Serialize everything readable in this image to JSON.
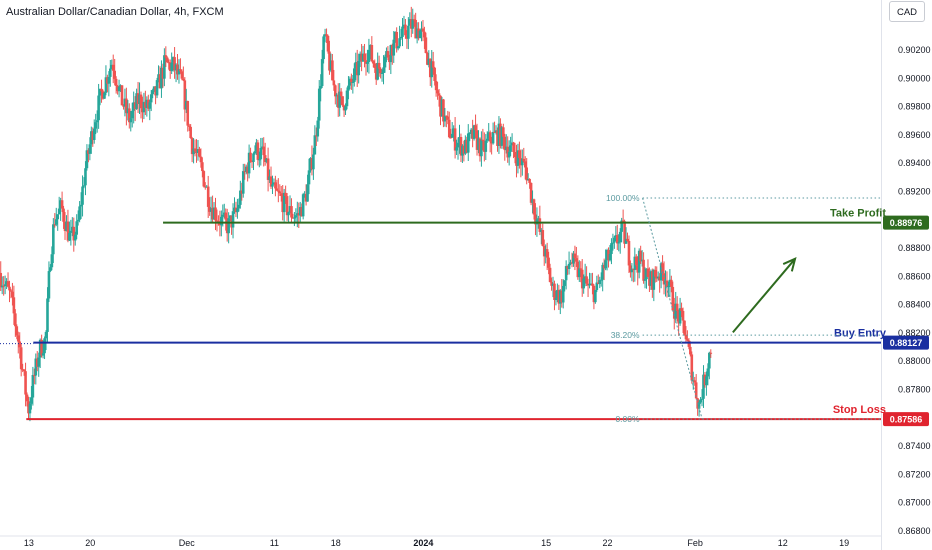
{
  "header": {
    "symbol_title": "Australian Dollar/Canadian Dollar, 4h, FXCM",
    "currency_button": "CAD"
  },
  "colors": {
    "bull": "#26a69a",
    "bear": "#ef5350",
    "take_profit": "#2e6b1f",
    "entry": "#1a2fa0",
    "stop_loss": "#e0242f",
    "fib": "#5b9aa0",
    "arrow": "#2e6b1f",
    "axis_text": "#131722"
  },
  "chart_data": {
    "type": "candlestick",
    "title": "Australian Dollar/Canadian Dollar, 4h, FXCM",
    "y_axis": {
      "ticks": [
        "0.90200",
        "0.90000",
        "0.89800",
        "0.89600",
        "0.89400",
        "0.89200",
        "0.88800",
        "0.88600",
        "0.88400",
        "0.88200",
        "0.88000",
        "0.87800",
        "0.87400",
        "0.87200",
        "0.87000",
        "0.86800"
      ],
      "ylim": [
        0.8676,
        0.9055
      ]
    },
    "x_axis": {
      "ticks": [
        {
          "label": "13",
          "pos": 0.0
        },
        {
          "label": "20",
          "pos": 7.0
        },
        {
          "label": "Dec",
          "pos": 18.0
        },
        {
          "label": "11",
          "pos": 28.0
        },
        {
          "label": "18",
          "pos": 35.0
        },
        {
          "label": "2024",
          "pos": 45.0
        },
        {
          "label": "15",
          "pos": 59.0
        },
        {
          "label": "22",
          "pos": 66.0
        },
        {
          "label": "Feb",
          "pos": 76.0
        },
        {
          "label": "12",
          "pos": 86.0
        },
        {
          "label": "19",
          "pos": 93.0
        }
      ],
      "xlim": [
        -3.3,
        97.2
      ]
    },
    "price_path": [
      [
        -3.3,
        0.8862
      ],
      [
        -2.0,
        0.8845
      ],
      [
        -1.0,
        0.881
      ],
      [
        0.0,
        0.8765
      ],
      [
        0.5,
        0.8783
      ],
      [
        1.3,
        0.8808
      ],
      [
        2.0,
        0.8815
      ],
      [
        2.5,
        0.8872
      ],
      [
        3.0,
        0.89
      ],
      [
        3.8,
        0.8908
      ],
      [
        4.8,
        0.8885
      ],
      [
        5.6,
        0.8893
      ],
      [
        6.5,
        0.8935
      ],
      [
        7.5,
        0.8968
      ],
      [
        8.5,
        0.8992
      ],
      [
        9.6,
        0.9012
      ],
      [
        10.6,
        0.8985
      ],
      [
        11.6,
        0.897
      ],
      [
        12.6,
        0.8985
      ],
      [
        13.6,
        0.8978
      ],
      [
        14.6,
        0.899
      ],
      [
        15.6,
        0.901
      ],
      [
        16.6,
        0.9008
      ],
      [
        17.6,
        0.8995
      ],
      [
        18.6,
        0.8955
      ],
      [
        19.8,
        0.8935
      ],
      [
        20.8,
        0.891
      ],
      [
        21.8,
        0.89
      ],
      [
        22.8,
        0.8895
      ],
      [
        23.8,
        0.8905
      ],
      [
        24.8,
        0.8935
      ],
      [
        25.8,
        0.895
      ],
      [
        26.8,
        0.8945
      ],
      [
        27.8,
        0.892
      ],
      [
        28.8,
        0.8915
      ],
      [
        29.8,
        0.8905
      ],
      [
        30.8,
        0.8902
      ],
      [
        31.8,
        0.892
      ],
      [
        32.8,
        0.896
      ],
      [
        33.8,
        0.903
      ],
      [
        34.8,
        0.8995
      ],
      [
        35.8,
        0.898
      ],
      [
        36.8,
        0.8995
      ],
      [
        37.8,
        0.901
      ],
      [
        38.8,
        0.902
      ],
      [
        39.8,
        0.9005
      ],
      [
        40.8,
        0.9015
      ],
      [
        41.8,
        0.9025
      ],
      [
        42.8,
        0.903
      ],
      [
        43.8,
        0.9038
      ],
      [
        44.8,
        0.9032
      ],
      [
        45.8,
        0.901
      ],
      [
        46.8,
        0.8985
      ],
      [
        47.8,
        0.8965
      ],
      [
        48.8,
        0.8955
      ],
      [
        49.8,
        0.895
      ],
      [
        50.8,
        0.896
      ],
      [
        51.8,
        0.8948
      ],
      [
        52.8,
        0.8958
      ],
      [
        53.8,
        0.896
      ],
      [
        54.8,
        0.895
      ],
      [
        55.8,
        0.8945
      ],
      [
        56.8,
        0.8935
      ],
      [
        57.8,
        0.8905
      ],
      [
        58.8,
        0.888
      ],
      [
        59.8,
        0.885
      ],
      [
        60.8,
        0.8845
      ],
      [
        61.8,
        0.8872
      ],
      [
        62.8,
        0.8862
      ],
      [
        63.8,
        0.8852
      ],
      [
        64.8,
        0.8848
      ],
      [
        65.8,
        0.8868
      ],
      [
        66.8,
        0.888
      ],
      [
        67.8,
        0.8893
      ],
      [
        68.8,
        0.8868
      ],
      [
        69.8,
        0.887
      ],
      [
        70.8,
        0.8855
      ],
      [
        71.8,
        0.8862
      ],
      [
        72.8,
        0.886
      ],
      [
        73.8,
        0.8835
      ],
      [
        74.8,
        0.8825
      ],
      [
        75.8,
        0.879
      ],
      [
        76.5,
        0.8768
      ],
      [
        77.2,
        0.8788
      ],
      [
        77.8,
        0.8808
      ]
    ],
    "levels": [
      {
        "name": "Take Profit",
        "value": 0.88976,
        "label": "0.88976",
        "color_key": "take_profit",
        "x_start": 15.3
      },
      {
        "name": "Buy Entry",
        "value": 0.88127,
        "label": "0.88127",
        "color_key": "entry",
        "x_start": 0.5
      },
      {
        "name": "Stop Loss",
        "value": 0.87586,
        "label": "0.87586",
        "color_key": "stop_loss",
        "x_start": -0.3
      }
    ],
    "fibonacci": [
      {
        "label": "100.00%",
        "value": 0.8915
      },
      {
        "label": "38.20%",
        "value": 0.8818
      },
      {
        "label": "0.00%",
        "value": 0.87586
      }
    ],
    "fib_anchor_x": 70.0,
    "fib_end_x": 97.2,
    "fib_trend": [
      [
        70.0,
        0.8915
      ],
      [
        76.8,
        0.87586
      ]
    ],
    "projection_arrow": [
      [
        80.3,
        0.882
      ],
      [
        87.4,
        0.8872
      ]
    ],
    "last_price": 0.8812
  }
}
